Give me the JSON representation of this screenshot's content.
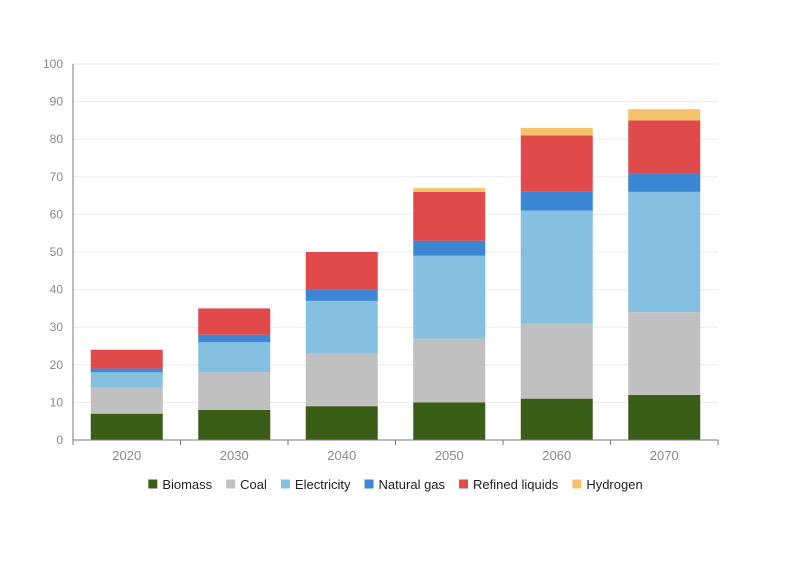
{
  "chart_data": {
    "type": "bar",
    "stacked": true,
    "categories": [
      "2020",
      "2030",
      "2040",
      "2050",
      "2060",
      "2070"
    ],
    "ylim": [
      0,
      100
    ],
    "yticks": [
      0,
      10,
      20,
      30,
      40,
      50,
      60,
      70,
      80,
      90,
      100
    ],
    "grid": true,
    "legend_position": "bottom",
    "series": [
      {
        "name": "Biomass",
        "color": "#3a5e17",
        "values": [
          7,
          8,
          9,
          10,
          11,
          12
        ]
      },
      {
        "name": "Coal",
        "color": "#c0c0c0",
        "values": [
          7,
          10,
          14,
          17,
          20,
          22
        ]
      },
      {
        "name": "Electricity",
        "color": "#86c0e0",
        "values": [
          4,
          8,
          14,
          22,
          30,
          32
        ]
      },
      {
        "name": "Natural gas",
        "color": "#3c86d6",
        "values": [
          1,
          2,
          3,
          4,
          5,
          5
        ]
      },
      {
        "name": "Refined liquids",
        "color": "#e14a4a",
        "values": [
          5,
          7,
          10,
          13,
          15,
          14
        ]
      },
      {
        "name": "Hydrogen",
        "color": "#f5c36b",
        "values": [
          0,
          0,
          0,
          1,
          2,
          3
        ]
      }
    ]
  }
}
